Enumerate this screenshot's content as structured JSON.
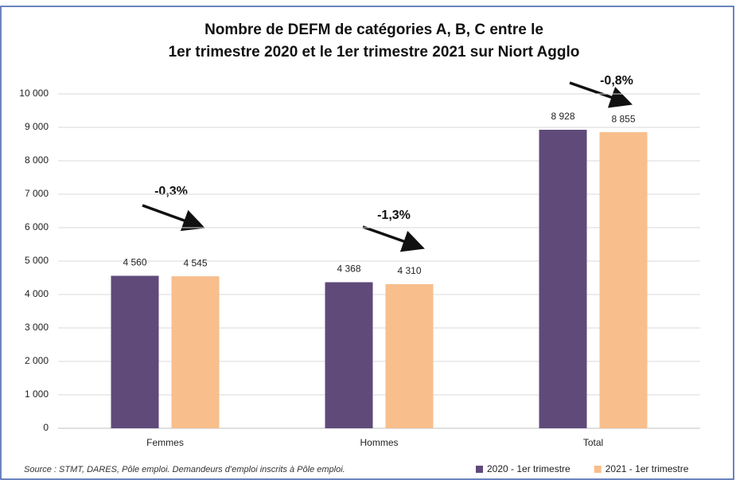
{
  "chart_data": {
    "type": "bar",
    "title": [
      "Nombre de DEFM de catégories A, B, C entre le",
      "1er trimestre 2020 et le 1er trimestre 2021 sur Niort Agglo"
    ],
    "categories": [
      "Femmes",
      "Hommes",
      "Total"
    ],
    "series": [
      {
        "name": "2020 - 1er trimestre",
        "color": "#5f4a7a",
        "values": [
          4560,
          4368,
          8928
        ],
        "value_labels": [
          "4 560",
          "4 368",
          "8 928"
        ]
      },
      {
        "name": "2021 - 1er trimestre",
        "color": "#f8be8c",
        "values": [
          4545,
          4310,
          8855
        ],
        "value_labels": [
          "4 545",
          "4 310",
          "8 855"
        ]
      }
    ],
    "annotations": [
      "-0,3%",
      "-1,3%",
      "-0,8%"
    ],
    "ylim": [
      0,
      10000
    ],
    "yticks": [
      0,
      {
        "value": 1000,
        "label": "1 000"
      },
      {
        "value": 2000,
        "label": "2 000"
      },
      {
        "value": 3000,
        "label": "3 000"
      },
      {
        "value": 4000,
        "label": "4 000"
      },
      {
        "value": 5000,
        "label": "5 000"
      },
      {
        "value": 6000,
        "label": "6 000"
      },
      {
        "value": 7000,
        "label": "7 000"
      },
      {
        "value": 8000,
        "label": "8 000"
      },
      {
        "value": 9000,
        "label": "9 000"
      },
      {
        "value": 10000,
        "label": "10 000"
      }
    ],
    "grid": true,
    "source": "Source : STMT, DARES, Pôle emploi. Demandeurs d’emploi inscrits à Pôle emploi.",
    "legend_position": "bottom-right"
  }
}
